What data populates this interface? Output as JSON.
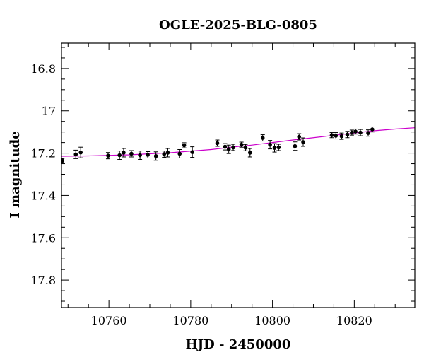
{
  "chart_data": {
    "type": "scatter",
    "title": "OGLE-2025-BLG-0805",
    "xlabel": "HJD - 2450000",
    "ylabel": "I magnitude",
    "xlim": [
      10748.4,
      10834.8
    ],
    "ylim": [
      17.93,
      16.68
    ],
    "y_inverted": true,
    "grid": false,
    "legend": "none",
    "x_ticks": [
      10760,
      10780,
      10800,
      10820
    ],
    "x_tick_labels": [
      "10760",
      "10780",
      "10800",
      "10820"
    ],
    "y_ticks": [
      16.8,
      17,
      17.2,
      17.4,
      17.6,
      17.8
    ],
    "y_tick_labels": [
      "16.8",
      "17",
      "17.2",
      "17.4",
      "17.6",
      "17.8"
    ],
    "series": [
      {
        "type": "scatter",
        "color": "#000000",
        "points": [
          {
            "x": 10748.6,
            "y": 17.236,
            "err": 0.01
          },
          {
            "x": 10751.9,
            "y": 17.206,
            "err": 0.02
          },
          {
            "x": 10753.1,
            "y": 17.197,
            "err": 0.025
          },
          {
            "x": 10759.8,
            "y": 17.212,
            "err": 0.015
          },
          {
            "x": 10762.6,
            "y": 17.21,
            "err": 0.02
          },
          {
            "x": 10763.6,
            "y": 17.198,
            "err": 0.02
          },
          {
            "x": 10765.5,
            "y": 17.203,
            "err": 0.015
          },
          {
            "x": 10767.6,
            "y": 17.21,
            "err": 0.02
          },
          {
            "x": 10769.5,
            "y": 17.208,
            "err": 0.015
          },
          {
            "x": 10771.5,
            "y": 17.214,
            "err": 0.02
          },
          {
            "x": 10773.5,
            "y": 17.205,
            "err": 0.015
          },
          {
            "x": 10774.4,
            "y": 17.198,
            "err": 0.02
          },
          {
            "x": 10777.3,
            "y": 17.203,
            "err": 0.02
          },
          {
            "x": 10778.4,
            "y": 17.163,
            "err": 0.012
          },
          {
            "x": 10780.4,
            "y": 17.195,
            "err": 0.025
          },
          {
            "x": 10786.5,
            "y": 17.153,
            "err": 0.015
          },
          {
            "x": 10788.4,
            "y": 17.17,
            "err": 0.015
          },
          {
            "x": 10789.3,
            "y": 17.182,
            "err": 0.02
          },
          {
            "x": 10790.4,
            "y": 17.173,
            "err": 0.015
          },
          {
            "x": 10792.4,
            "y": 17.16,
            "err": 0.012
          },
          {
            "x": 10793.4,
            "y": 17.174,
            "err": 0.015
          },
          {
            "x": 10794.5,
            "y": 17.198,
            "err": 0.02
          },
          {
            "x": 10797.6,
            "y": 17.128,
            "err": 0.015
          },
          {
            "x": 10799.4,
            "y": 17.16,
            "err": 0.02
          },
          {
            "x": 10800.5,
            "y": 17.175,
            "err": 0.02
          },
          {
            "x": 10801.5,
            "y": 17.173,
            "err": 0.015
          },
          {
            "x": 10805.5,
            "y": 17.167,
            "err": 0.02
          },
          {
            "x": 10806.5,
            "y": 17.123,
            "err": 0.015
          },
          {
            "x": 10807.5,
            "y": 17.148,
            "err": 0.02
          },
          {
            "x": 10814.5,
            "y": 17.115,
            "err": 0.012
          },
          {
            "x": 10815.5,
            "y": 17.118,
            "err": 0.015
          },
          {
            "x": 10816.9,
            "y": 17.12,
            "err": 0.015
          },
          {
            "x": 10818.3,
            "y": 17.112,
            "err": 0.015
          },
          {
            "x": 10819.4,
            "y": 17.103,
            "err": 0.012
          },
          {
            "x": 10820.3,
            "y": 17.098,
            "err": 0.012
          },
          {
            "x": 10821.5,
            "y": 17.103,
            "err": 0.015
          },
          {
            "x": 10823.4,
            "y": 17.105,
            "err": 0.015
          },
          {
            "x": 10824.4,
            "y": 17.088,
            "err": 0.012
          }
        ]
      },
      {
        "type": "line",
        "color": "#cc00cc",
        "points": [
          {
            "x": 10748.4,
            "y": 17.215
          },
          {
            "x": 10755,
            "y": 17.213
          },
          {
            "x": 10765,
            "y": 17.208
          },
          {
            "x": 10775,
            "y": 17.198
          },
          {
            "x": 10785,
            "y": 17.183
          },
          {
            "x": 10790,
            "y": 17.172
          },
          {
            "x": 10795,
            "y": 17.162
          },
          {
            "x": 10800,
            "y": 17.15
          },
          {
            "x": 10805,
            "y": 17.138
          },
          {
            "x": 10810,
            "y": 17.127
          },
          {
            "x": 10815,
            "y": 17.116
          },
          {
            "x": 10820,
            "y": 17.105
          },
          {
            "x": 10825,
            "y": 17.094
          },
          {
            "x": 10830,
            "y": 17.086
          },
          {
            "x": 10834.8,
            "y": 17.08
          }
        ]
      }
    ]
  }
}
